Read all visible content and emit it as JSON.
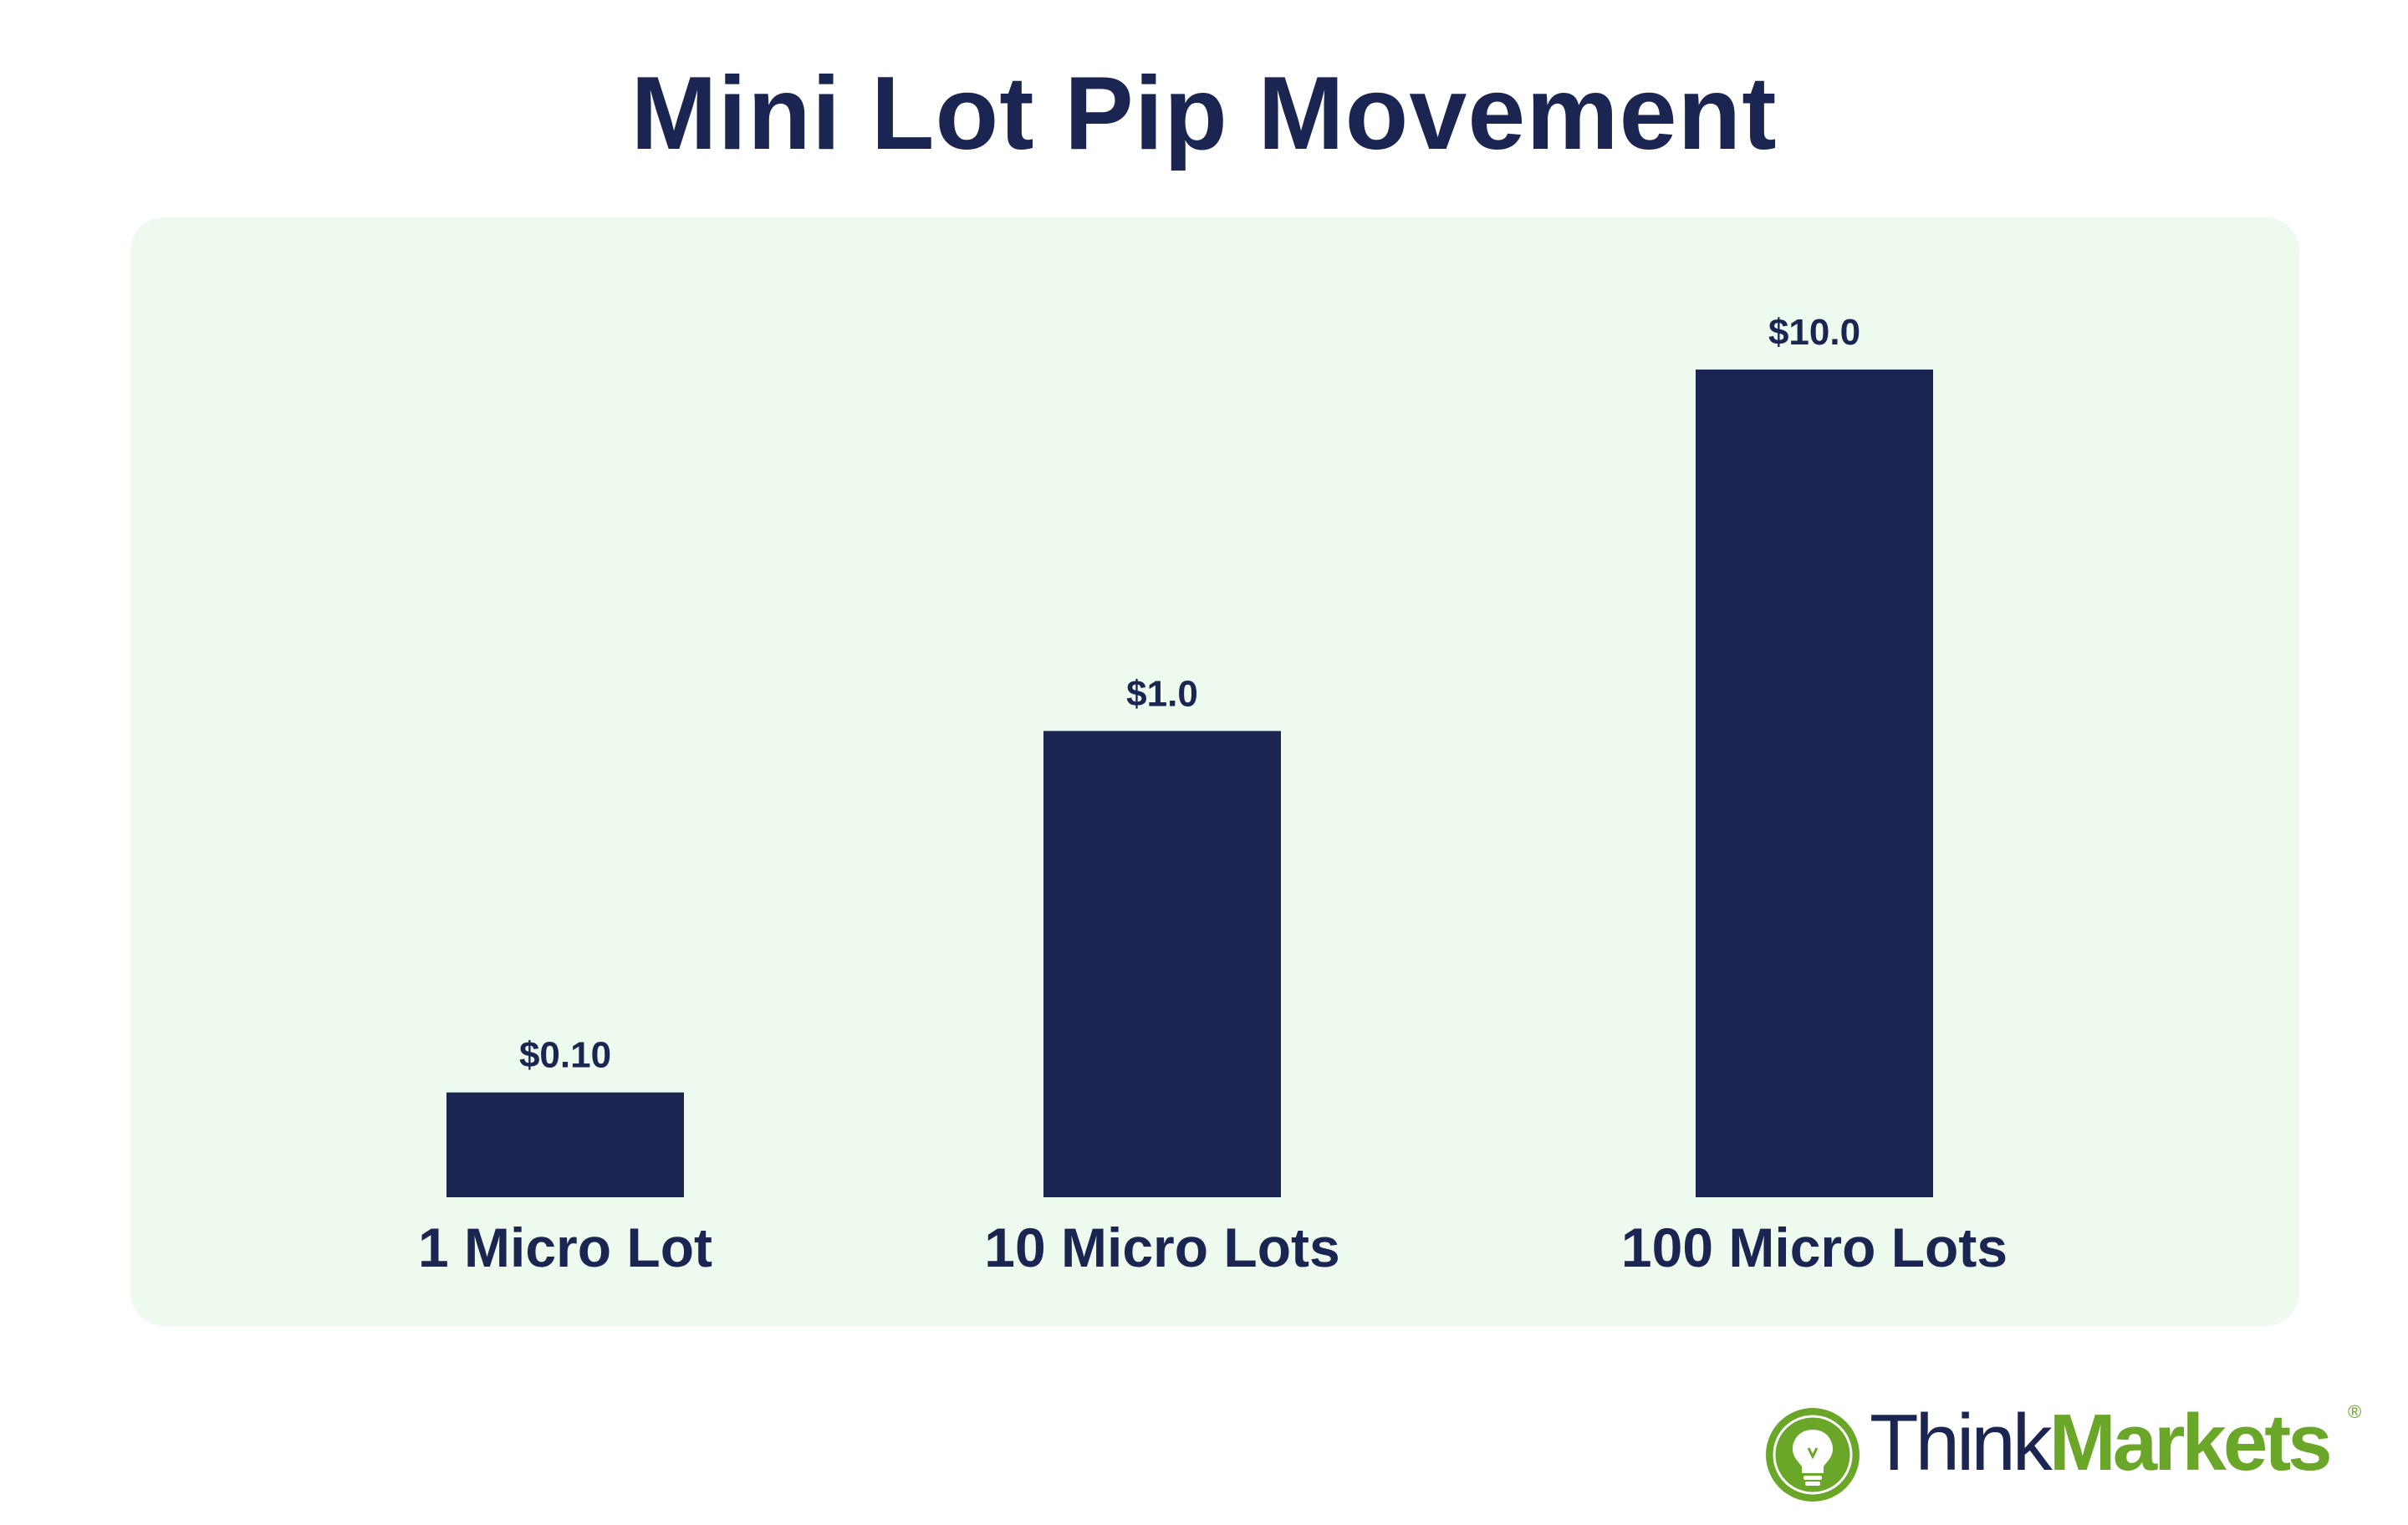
{
  "title": "Mini Lot Pip Movement",
  "chart_data": {
    "type": "bar",
    "title": "Mini Lot Pip Movement",
    "categories": [
      "1 Micro Lot",
      "10 Micro Lots",
      "100 Micro Lots"
    ],
    "values": [
      0.1,
      1.0,
      10.0
    ],
    "value_labels": [
      "$0.10",
      "$1.0",
      "$10.0"
    ],
    "xlabel": "",
    "ylabel": "",
    "grid": false,
    "bar_color": "#1a2552",
    "background_color": "#effaee"
  },
  "logo": {
    "part1": "Think",
    "part2": "Markets",
    "registered": "®",
    "icon": "lightbulb-currency-icon",
    "colors": {
      "dark": "#1a2552",
      "green": "#6aa628"
    }
  }
}
